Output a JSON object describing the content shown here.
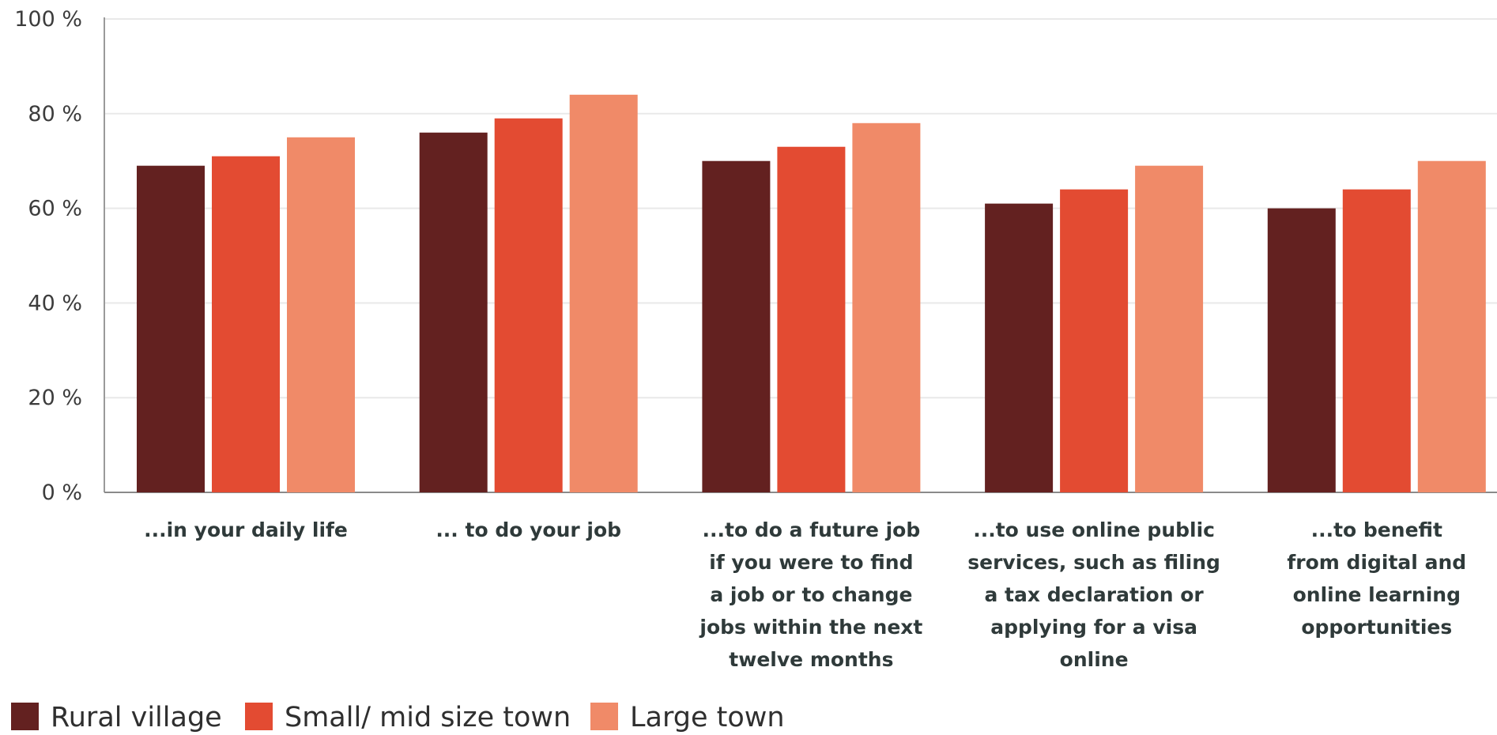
{
  "chart_data": {
    "type": "bar",
    "categories": [
      [
        "...in your daily life"
      ],
      [
        "... to do your job"
      ],
      [
        "...to do a future job",
        "if you were to find",
        "a job or to change",
        "jobs within the next",
        "twelve months"
      ],
      [
        "...to use online public",
        "services, such as filing",
        "a tax declaration or",
        "applying for a visa",
        "online"
      ],
      [
        "...to benefit",
        "from digital and",
        "online learning",
        "opportunities"
      ]
    ],
    "series": [
      {
        "name": "Rural village",
        "color": "#632120",
        "values": [
          69,
          76,
          70,
          61,
          60
        ]
      },
      {
        "name": "Small/ mid size town",
        "color": "#e34b32",
        "values": [
          71,
          79,
          73,
          64,
          64
        ]
      },
      {
        "name": "Large town",
        "color": "#f08a68",
        "values": [
          75,
          84,
          78,
          69,
          70
        ]
      }
    ],
    "ylim": [
      0,
      100
    ],
    "yticks": [
      0,
      20,
      40,
      60,
      80,
      100
    ],
    "ytick_labels": [
      "0 %",
      "20 %",
      "40 %",
      "60 %",
      "80 %",
      "100 %"
    ],
    "grid": true,
    "legend": "bottom-left",
    "title": "",
    "xlabel": "",
    "ylabel": ""
  }
}
